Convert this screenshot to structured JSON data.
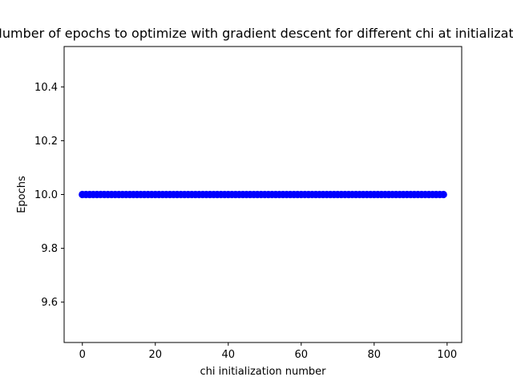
{
  "chart_data": {
    "type": "scatter",
    "title": "Number of epochs to optimize with gradient descent for different chi at initialization",
    "xlabel": "chi initialization number",
    "ylabel": "Epochs",
    "xlim": [
      -5,
      104
    ],
    "ylim": [
      9.45,
      10.55
    ],
    "xticks": [
      0,
      20,
      40,
      60,
      80,
      100
    ],
    "yticks": [
      9.6,
      9.8,
      10.0,
      10.2,
      10.4
    ],
    "xtick_labels": [
      "0",
      "20",
      "40",
      "60",
      "80",
      "100"
    ],
    "ytick_labels": [
      "9.6",
      "9.8",
      "10.0",
      "10.2",
      "10.4"
    ],
    "marker_color": "#0000ff",
    "grid": false,
    "series": [
      {
        "x": [
          0,
          1,
          2,
          3,
          4,
          5,
          6,
          7,
          8,
          9,
          10,
          11,
          12,
          13,
          14,
          15,
          16,
          17,
          18,
          19,
          20,
          21,
          22,
          23,
          24,
          25,
          26,
          27,
          28,
          29,
          30,
          31,
          32,
          33,
          34,
          35,
          36,
          37,
          38,
          39,
          40,
          41,
          42,
          43,
          44,
          45,
          46,
          47,
          48,
          49,
          50,
          51,
          52,
          53,
          54,
          55,
          56,
          57,
          58,
          59,
          60,
          61,
          62,
          63,
          64,
          65,
          66,
          67,
          68,
          69,
          70,
          71,
          72,
          73,
          74,
          75,
          76,
          77,
          78,
          79,
          80,
          81,
          82,
          83,
          84,
          85,
          86,
          87,
          88,
          89,
          90,
          91,
          92,
          93,
          94,
          95,
          96,
          97,
          98,
          99
        ],
        "y": [
          10,
          10,
          10,
          10,
          10,
          10,
          10,
          10,
          10,
          10,
          10,
          10,
          10,
          10,
          10,
          10,
          10,
          10,
          10,
          10,
          10,
          10,
          10,
          10,
          10,
          10,
          10,
          10,
          10,
          10,
          10,
          10,
          10,
          10,
          10,
          10,
          10,
          10,
          10,
          10,
          10,
          10,
          10,
          10,
          10,
          10,
          10,
          10,
          10,
          10,
          10,
          10,
          10,
          10,
          10,
          10,
          10,
          10,
          10,
          10,
          10,
          10,
          10,
          10,
          10,
          10,
          10,
          10,
          10,
          10,
          10,
          10,
          10,
          10,
          10,
          10,
          10,
          10,
          10,
          10,
          10,
          10,
          10,
          10,
          10,
          10,
          10,
          10,
          10,
          10,
          10,
          10,
          10,
          10,
          10,
          10,
          10,
          10,
          10,
          10
        ]
      }
    ]
  }
}
